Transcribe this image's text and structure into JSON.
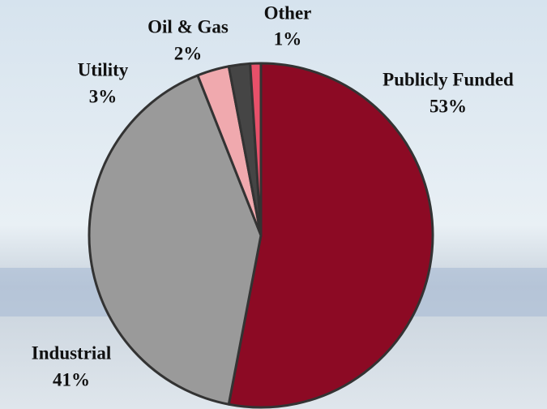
{
  "chart_data": {
    "type": "pie",
    "categories": [
      "Publicly Funded",
      "Industrial",
      "Utility",
      "Oil & Gas",
      "Other"
    ],
    "values": [
      53,
      41,
      3,
      2,
      1
    ],
    "value_labels": [
      "53%",
      "41%",
      "3%",
      "2%",
      "1%"
    ],
    "colors": [
      "#8c0a24",
      "#9a9a9a",
      "#f0a9ae",
      "#454545",
      "#e8506a"
    ]
  }
}
